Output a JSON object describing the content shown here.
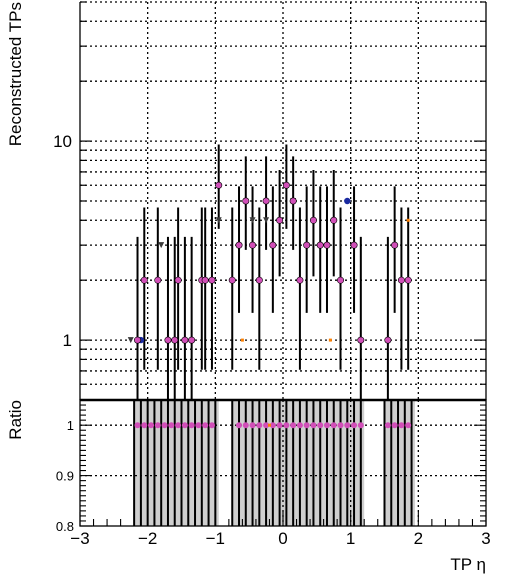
{
  "chart_data": [
    {
      "type": "scatter",
      "panel": "upper",
      "ylabel": "Reconstructed TPs",
      "xlim": [
        -3,
        3
      ],
      "ylim": [
        0.5,
        50
      ],
      "log_y": true,
      "grid": true,
      "y_ticks": [
        {
          "value": 1,
          "label": "1"
        },
        {
          "value": 10,
          "label": "10"
        }
      ],
      "x": [
        -2.15,
        -2.05,
        -1.85,
        -1.7,
        -1.6,
        -1.55,
        -1.45,
        -1.35,
        -1.2,
        -1.15,
        -1.05,
        -0.95,
        -0.75,
        -0.65,
        -0.55,
        -0.45,
        -0.35,
        -0.25,
        -0.15,
        -0.05,
        0.05,
        0.15,
        0.25,
        0.35,
        0.45,
        0.55,
        0.65,
        0.75,
        0.85,
        1.05,
        1.15,
        1.55,
        1.65,
        1.75,
        1.85
      ],
      "series": [
        {
          "color": "#d14fb8",
          "marker": "circle",
          "values": [
            1,
            2,
            2,
            1,
            1,
            2,
            1,
            1,
            2,
            2,
            2,
            6,
            2,
            3,
            5,
            3,
            2,
            5,
            3,
            4,
            6,
            5,
            2,
            3,
            4,
            3,
            3,
            4,
            2,
            3,
            1,
            1,
            3,
            2,
            2
          ],
          "err_low": [
            0.83,
            1.29,
            1.29,
            0.83,
            0.83,
            1.29,
            0.83,
            0.83,
            1.29,
            1.29,
            1.29,
            2.38,
            1.29,
            1.63,
            2.16,
            1.63,
            1.29,
            2.16,
            1.63,
            1.91,
            2.38,
            2.16,
            1.29,
            1.63,
            1.91,
            1.63,
            1.63,
            1.91,
            1.29,
            1.63,
            0.83,
            0.83,
            1.63,
            1.29,
            1.29
          ],
          "err_high": [
            2.3,
            2.64,
            2.64,
            2.3,
            2.3,
            2.64,
            2.3,
            2.3,
            2.64,
            2.64,
            2.64,
            3.62,
            2.64,
            2.92,
            3.38,
            2.92,
            2.64,
            3.38,
            2.92,
            3.16,
            3.62,
            3.38,
            2.64,
            2.92,
            3.16,
            2.92,
            2.92,
            3.16,
            2.64,
            2.92,
            2.3,
            2.3,
            2.92,
            2.64,
            2.64
          ]
        },
        {
          "color": "#3a3a3a",
          "marker": "triangle-down",
          "x": [
            -2.25,
            -1.8,
            -0.95,
            -0.45,
            -0.25,
            0.15
          ],
          "values": [
            1,
            3,
            4,
            4,
            4,
            5
          ]
        },
        {
          "color": "#1a2aa0",
          "marker": "circle",
          "x": [
            -2.1,
            0.95,
            1.15
          ],
          "values": [
            1,
            5,
            1
          ]
        },
        {
          "color": "#ff8000",
          "marker": "dot",
          "x": [
            -1.35,
            -1.05,
            -0.6,
            0.7,
            1.85
          ],
          "values": [
            1,
            2,
            1,
            1,
            4
          ]
        }
      ]
    },
    {
      "type": "scatter",
      "panel": "lower",
      "xlabel": "TP η",
      "ylabel": "Ratio",
      "xlim": [
        -3,
        3
      ],
      "ylim": [
        0.8,
        1.05
      ],
      "grid": true,
      "x_ticks": [
        {
          "value": -3,
          "label": "−3"
        },
        {
          "value": -2,
          "label": "−2"
        },
        {
          "value": -1,
          "label": "−1"
        },
        {
          "value": 0,
          "label": "0"
        },
        {
          "value": 1,
          "label": "1"
        },
        {
          "value": 2,
          "label": "2"
        },
        {
          "value": 3,
          "label": "3"
        }
      ],
      "y_ticks": [
        {
          "value": 0.8,
          "label": "0.8"
        },
        {
          "value": 0.9,
          "label": "0.9"
        },
        {
          "value": 1,
          "label": "1"
        }
      ],
      "bands": [
        [
          -2.2,
          -0.95
        ],
        [
          -0.75,
          1.2
        ],
        [
          1.5,
          1.95
        ]
      ],
      "ratio_x": [
        -2.15,
        -2.05,
        -1.95,
        -1.85,
        -1.75,
        -1.65,
        -1.55,
        -1.45,
        -1.35,
        -1.25,
        -1.15,
        -1.05,
        -0.65,
        -0.55,
        -0.45,
        -0.35,
        -0.25,
        -0.15,
        -0.05,
        0.05,
        0.15,
        0.25,
        0.35,
        0.45,
        0.55,
        0.65,
        0.75,
        0.85,
        0.95,
        1.05,
        1.15,
        1.55,
        1.65,
        1.75,
        1.85
      ],
      "ratio_values": [
        1,
        1,
        1,
        1,
        1,
        1,
        1,
        1,
        1,
        1,
        1,
        1,
        1,
        1,
        1,
        1,
        1,
        1,
        1,
        1,
        1,
        1,
        1,
        1,
        1,
        1,
        1,
        1,
        1,
        1,
        1,
        1,
        1,
        1,
        1
      ],
      "orange_x": [
        -0.2
      ],
      "orange_values": [
        1
      ]
    }
  ]
}
